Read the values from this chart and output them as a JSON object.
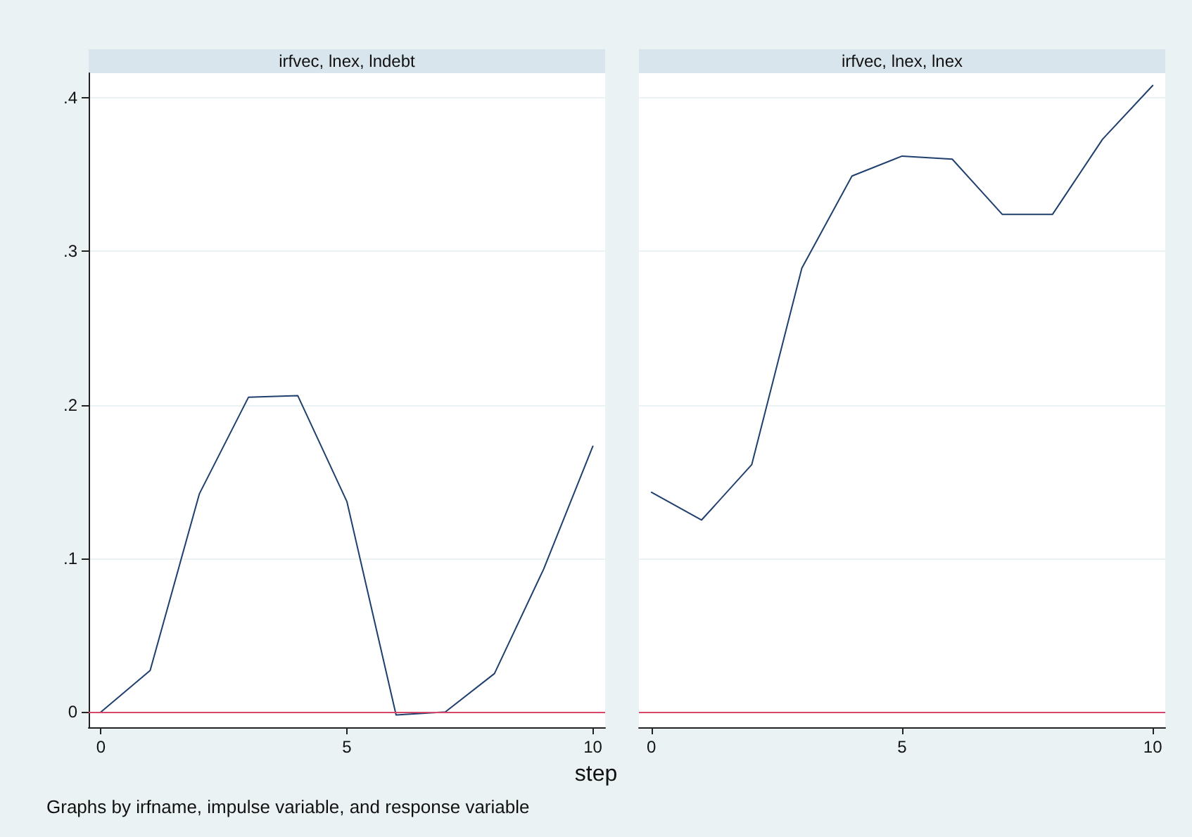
{
  "chart_data": [
    {
      "type": "line",
      "title": "irfvec, lnex, lndebt",
      "xlabel": "step",
      "annotations": [
        "Graphs by irfname, impulse variable, and response variable"
      ],
      "x": [
        0,
        1,
        2,
        3,
        4,
        5,
        6,
        7,
        8,
        9,
        10
      ],
      "series": [
        {
          "color": "#1f3f6e",
          "values": [
            0,
            0.027,
            0.142,
            0.205,
            0.206,
            0.137,
            -0.002,
            0,
            0.025,
            0.093,
            0.173
          ]
        }
      ],
      "xlim": [
        -0.25,
        10.25
      ],
      "xticks": [
        0,
        5,
        10
      ],
      "ylim": [
        -0.01,
        0.416
      ],
      "yticks": [
        0,
        {
          "value": 0.1,
          "label": ".1"
        },
        {
          "value": 0.2,
          "label": ".2"
        },
        {
          "value": 0.3,
          "label": ".3"
        },
        {
          "value": 0.4,
          "label": ".4"
        }
      ],
      "ref_lines": [
        {
          "axis": "y",
          "value": 0,
          "color": "#d6456a"
        }
      ],
      "grid": "y",
      "marker": "none",
      "line_style": "solid"
    },
    {
      "type": "line",
      "title": "irfvec, lnex, lnex",
      "x": [
        0,
        1,
        2,
        3,
        4,
        5,
        6,
        7,
        8,
        9,
        10
      ],
      "series": [
        {
          "color": "#1f3f6e",
          "values": [
            0.143,
            0.125,
            0.161,
            0.289,
            0.349,
            0.362,
            0.36,
            0.324,
            0.324,
            0.373,
            0.408
          ]
        }
      ],
      "xlim": [
        -0.25,
        10.25
      ],
      "xticks": [
        0,
        5,
        10
      ],
      "ylim": [
        -0.01,
        0.416
      ],
      "ref_lines": [
        {
          "axis": "y",
          "value": 0,
          "color": "#d6456a"
        }
      ],
      "grid": "y",
      "marker": "none",
      "line_style": "solid",
      "tick_labels": "x",
      "yticks": [
        0,
        0.1,
        0.2,
        0.3,
        0.4
      ]
    }
  ]
}
